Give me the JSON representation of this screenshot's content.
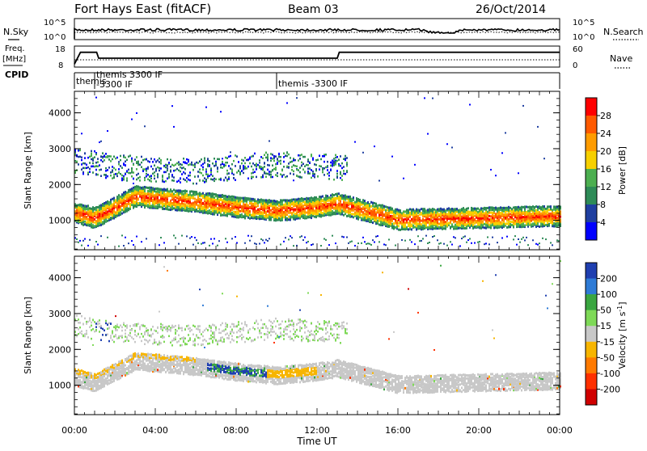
{
  "header": {
    "station": "Fort Hays East (fitACF)",
    "beam": "Beam 03",
    "date": "26/Oct/2014"
  },
  "noise_panel": {
    "left_label": "N.Sky",
    "right_label": "N.Search",
    "left_ticks": [
      "10^5",
      "10^0"
    ],
    "right_ticks": [
      "10^5",
      "10^0"
    ]
  },
  "freq_panel": {
    "left_label_line1": "Freq.",
    "left_label_line2": "[MHz]",
    "right_label": "Nave",
    "left_ticks": [
      "18",
      "8"
    ],
    "right_ticks": [
      "60",
      "0"
    ]
  },
  "cpid_panel": {
    "label": "CPID",
    "segments": [
      {
        "start_hour": 0.0,
        "lines": [
          "themis",
          ""
        ]
      },
      {
        "start_hour": 1.0,
        "lines": [
          "themis 3300 IF",
          "-3300 IF"
        ]
      },
      {
        "start_hour": 10.0,
        "lines": [
          "",
          "themis -3300 IF"
        ]
      }
    ]
  },
  "power_panel": {
    "ylabel": "Slant Range [km]",
    "cbar_label": "Power [dB]",
    "cbar_ticks": [
      "28",
      "24",
      "20",
      "16",
      "12",
      "8",
      "4"
    ],
    "cbar_colors": [
      "#ff0000",
      "#ff5a00",
      "#ff9c00",
      "#f7d000",
      "#4caf50",
      "#2e8b57",
      "#1f3fa0",
      "#0000ff"
    ]
  },
  "velocity_panel": {
    "ylabel": "Slant Range [km]",
    "cbar_label": "Velocity [m s",
    "cbar_label_sup": "-1",
    "cbar_label_end": "]",
    "cbar_ticks": [
      "200",
      "100",
      "50",
      "15",
      "-15",
      "-50",
      "-100",
      "-200"
    ],
    "cbar_colors": [
      "#1f3fb0",
      "#2e7bd6",
      "#3aa640",
      "#7ed957",
      "#c8c8c8",
      "#f7b500",
      "#ff7a00",
      "#ff3000",
      "#d00000"
    ]
  },
  "xaxis": {
    "label": "Time UT",
    "ticks": [
      "00:00",
      "04:00",
      "08:00",
      "12:00",
      "16:00",
      "20:00",
      "00:00"
    ]
  },
  "chart_data": {
    "type": "heatmap",
    "title": "Fort Hays East (fitACF) Beam 03 26/Oct/2014",
    "xlabel": "Time UT",
    "ylabel": "Slant Range [km]",
    "x_range_hours": [
      0,
      24
    ],
    "y_range_km": [
      180,
      4600
    ],
    "y_ticks": [
      1000,
      2000,
      3000,
      4000
    ],
    "power_colorbar_range_db": [
      0,
      30
    ],
    "velocity_colorbar_range": [
      -250,
      250
    ],
    "freq_series": {
      "name": "Freq.",
      "points": [
        [
          0,
          8
        ],
        [
          0.3,
          16
        ],
        [
          1.1,
          16
        ],
        [
          1.2,
          12
        ],
        [
          13.0,
          12
        ],
        [
          13.1,
          16
        ],
        [
          24,
          16
        ]
      ]
    },
    "power_features": [
      {
        "name": "main echo band",
        "hour_start": 0.0,
        "hour_end": 24.0,
        "range_points": [
          [
            0,
            1250
          ],
          [
            1,
            1100
          ],
          [
            3,
            1700
          ],
          [
            6,
            1550
          ],
          [
            8,
            1400
          ],
          [
            10,
            1300
          ],
          [
            12,
            1400
          ],
          [
            13,
            1500
          ],
          [
            16,
            1050
          ],
          [
            20,
            1100
          ],
          [
            24,
            1150
          ]
        ],
        "power_db": 26
      },
      {
        "name": "upper scatter",
        "hour_start": 0.0,
        "hour_end": 13.0,
        "range_points": [
          [
            0,
            2700
          ],
          [
            2,
            2500
          ],
          [
            6,
            2400
          ],
          [
            10,
            2600
          ],
          [
            13,
            2500
          ]
        ],
        "power_db": 10
      }
    ],
    "velocity_features": [
      {
        "name": "gray band",
        "hour_start": 0,
        "hour_end": 24,
        "velocity": 0
      },
      {
        "name": "green-blue patch",
        "hour_start": 6.5,
        "hour_end": 9.5,
        "velocity": 120
      },
      {
        "name": "orange patch",
        "hour_start": 9.5,
        "hour_end": 12.0,
        "velocity": -40
      }
    ]
  }
}
